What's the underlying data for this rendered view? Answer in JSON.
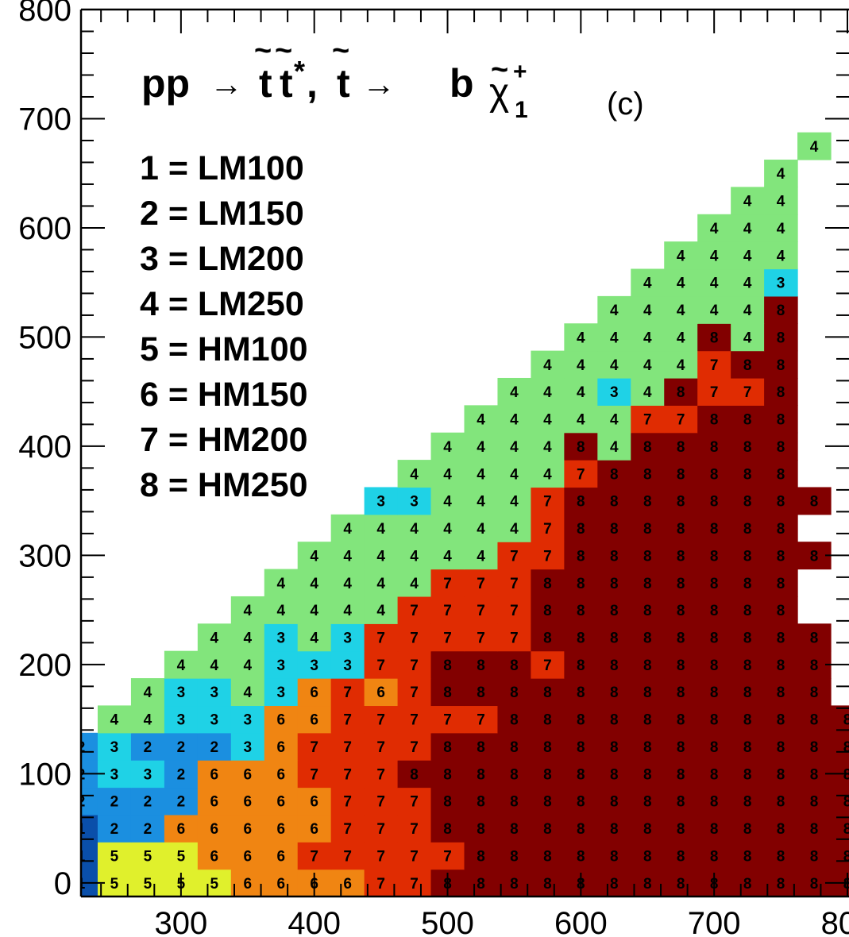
{
  "chart_data": {
    "type": "heatmap",
    "title_parts": {
      "initial": "pp",
      "arrow": "→",
      "t": "t",
      "tilde": "~",
      "t_conj_star": "*",
      "comma": ",",
      "decay": "b",
      "chi": "χ",
      "chi_sup": "+",
      "chi_sub": "1"
    },
    "panel_label": "(c)",
    "legend": [
      "1 = LM100",
      "2 = LM150",
      "3 = LM200",
      "4 = LM250",
      "5 = HM100",
      "6 = HM150",
      "7 = HM200",
      "8 = HM250"
    ],
    "xlabel": "",
    "ylabel": "",
    "x_ticks": [
      "300",
      "400",
      "500",
      "600",
      "700",
      "800"
    ],
    "y_ticks": [
      "0",
      "100",
      "200",
      "300",
      "400",
      "500",
      "600",
      "700",
      "800"
    ],
    "xlim": [
      225,
      800
    ],
    "ylim": [
      -12.5,
      800
    ],
    "x_step": 25,
    "y_step": 25,
    "category_colors": {
      "1": "#0a4faa",
      "2": "#1b8fe0",
      "3": "#1fd2e6",
      "4": "#82e57c",
      "5": "#e0f02c",
      "6": "#f08512",
      "7": "#e02c02",
      "8": "#820000"
    },
    "x_start": 225,
    "y_start": 0,
    "rows": [
      "155556666778888888888888",
      "155566677777888888888888",
      "122666667778888888888888",
      "222266667778888888888888",
      "233266677788888888888888",
      "232223677778888888888888",
      ".44333667777788888888888",
      "..433436767888888888888",
      "...44433377888788888888",
      "....4434377777888888888",
      ".....44444777788888888",
      "......4444477788888888",
      ".......4444447788888888",
      "........44444478888888",
      ".........33444788888888",
      "..........444447888888",
      "...........44448488888",
      "............4444477888",
      ".............444348778",
      "..............44444788",
      "...............4444848",
      "................444448",
      ".................44443",
      "..................4444",
      "...................444",
      "....................44",
      ".....................4",
      "......................4",
      "........................"
    ]
  }
}
